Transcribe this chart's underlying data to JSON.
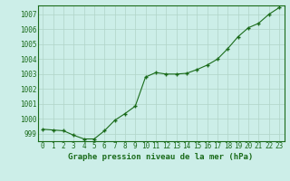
{
  "x": [
    0,
    1,
    2,
    3,
    4,
    5,
    6,
    7,
    8,
    9,
    10,
    11,
    12,
    13,
    14,
    15,
    16,
    17,
    18,
    19,
    20,
    21,
    22,
    23
  ],
  "y": [
    999.3,
    999.25,
    999.2,
    998.9,
    998.65,
    998.65,
    999.2,
    999.9,
    1000.35,
    1000.85,
    1002.8,
    1003.1,
    1003.0,
    1003.0,
    1003.05,
    1003.3,
    1003.6,
    1004.0,
    1004.7,
    1005.5,
    1006.1,
    1006.4,
    1007.0,
    1007.45
  ],
  "ylim": [
    998.5,
    1007.6
  ],
  "yticks": [
    999,
    1000,
    1001,
    1002,
    1003,
    1004,
    1005,
    1006,
    1007
  ],
  "xticks": [
    0,
    1,
    2,
    3,
    4,
    5,
    6,
    7,
    8,
    9,
    10,
    11,
    12,
    13,
    14,
    15,
    16,
    17,
    18,
    19,
    20,
    21,
    22,
    23
  ],
  "line_color": "#1a6b1a",
  "marker_color": "#1a6b1a",
  "bg_color": "#cceee8",
  "grid_color": "#b0d4c8",
  "xlabel": "Graphe pression niveau de la mer (hPa)",
  "xlabel_color": "#1a6b1a",
  "tick_label_color": "#1a6b1a",
  "border_color": "#1a6b1a",
  "tick_fontsize": 5.5,
  "xlabel_fontsize": 6.5
}
